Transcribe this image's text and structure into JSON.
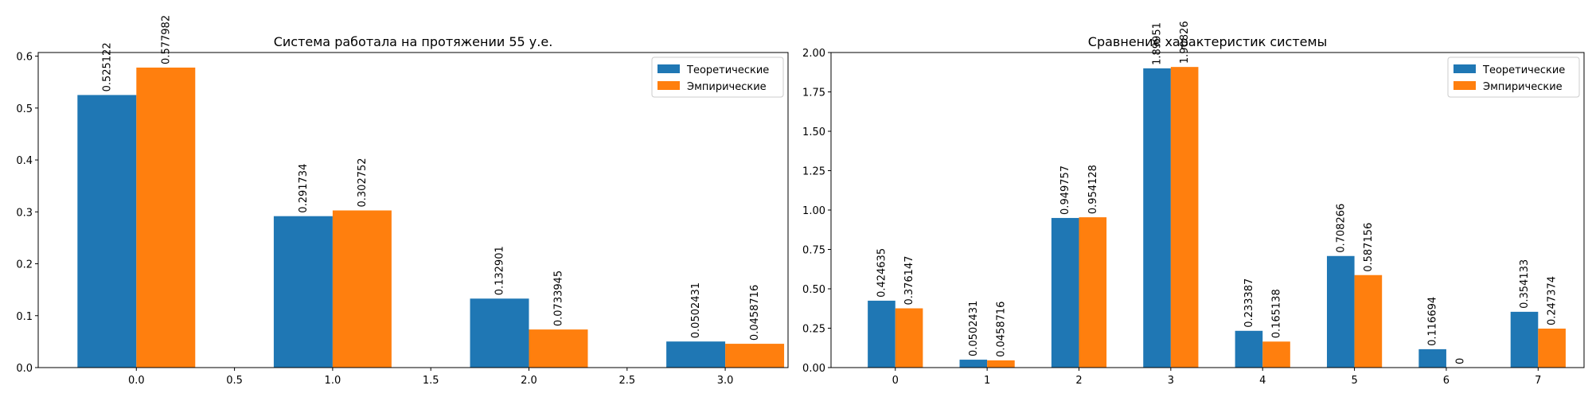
{
  "chart_data": [
    {
      "type": "bar",
      "title": "Система работала на протяжении 55 у.е.",
      "xlabel": "",
      "ylabel": "",
      "grid": false,
      "legend_position": "top-right",
      "categories": [
        0,
        1,
        2,
        3
      ],
      "xticks": [
        "0.0",
        "0.5",
        "1.0",
        "1.5",
        "2.0",
        "2.5",
        "3.0"
      ],
      "yticks": [
        "0.0",
        "0.1",
        "0.2",
        "0.3",
        "0.4",
        "0.5",
        "0.6"
      ],
      "ylim": [
        0,
        0.607
      ],
      "xlim": [
        -0.5,
        3.32
      ],
      "series": [
        {
          "name": "Теоретические",
          "color": "#1f77b4",
          "values": [
            0.525122,
            0.291734,
            0.132901,
            0.0502431
          ],
          "labels": [
            "0.525122",
            "0.291734",
            "0.132901",
            "0.0502431"
          ]
        },
        {
          "name": "Эмпирические",
          "color": "#ff7f0e",
          "values": [
            0.577982,
            0.302752,
            0.0733945,
            0.0458716
          ],
          "labels": [
            "0.577982",
            "0.302752",
            "0.0733945",
            "0.0458716"
          ]
        }
      ]
    },
    {
      "type": "bar",
      "title": "Сравнение характеристик системы",
      "xlabel": "",
      "ylabel": "",
      "grid": false,
      "legend_position": "top-right",
      "categories": [
        0,
        1,
        2,
        3,
        4,
        5,
        6,
        7
      ],
      "xticks": [
        "0",
        "1",
        "2",
        "3",
        "4",
        "5",
        "6",
        "7"
      ],
      "yticks": [
        "0.00",
        "0.25",
        "0.50",
        "0.75",
        "1.00",
        "1.25",
        "1.50",
        "1.75",
        "2.00"
      ],
      "ylim": [
        0,
        2.0
      ],
      "xlim": [
        -0.7,
        7.5
      ],
      "series": [
        {
          "name": "Теоретические",
          "color": "#1f77b4",
          "values": [
            0.424635,
            0.0502431,
            0.949757,
            1.89951,
            0.233387,
            0.708266,
            0.116694,
            0.354133
          ],
          "labels": [
            "0.424635",
            "0.0502431",
            "0.949757",
            "1.89951",
            "0.233387",
            "0.708266",
            "0.116694",
            "0.354133"
          ]
        },
        {
          "name": "Эмпирические",
          "color": "#ff7f0e",
          "values": [
            0.376147,
            0.0458716,
            0.954128,
            1.90826,
            0.165138,
            0.587156,
            0,
            0.247374
          ],
          "labels": [
            "0.376147",
            "0.0458716",
            "0.954128",
            "1.90826",
            "0.165138",
            "0.587156",
            "0",
            "0.247374"
          ]
        }
      ]
    }
  ]
}
